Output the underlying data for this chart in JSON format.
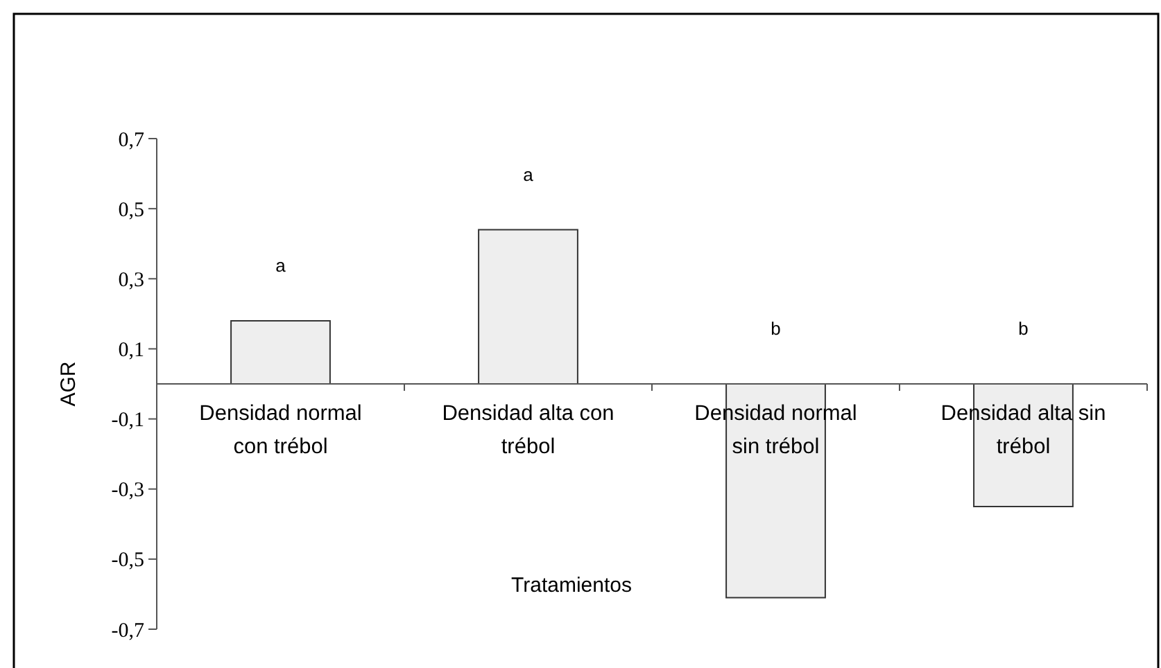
{
  "chart_data": {
    "type": "bar",
    "xlabel": "Tratamientos",
    "ylabel": "AGR",
    "categories": [
      "Densidad normal con trébol",
      "Densidad alta con trébol",
      "Densidad normal sin trébol",
      "Densidad alta sin trébol"
    ],
    "values": [
      0.18,
      0.44,
      -0.61,
      -0.35
    ],
    "color": "#eeeeee",
    "ylim": [
      -0.7,
      0.7
    ],
    "yticks": [
      {
        "value": -0.7,
        "label": "-0,7"
      },
      {
        "value": -0.5,
        "label": "-0,5"
      },
      {
        "value": -0.3,
        "label": "-0,3"
      },
      {
        "value": -0.1,
        "label": "-0,1"
      },
      {
        "value": 0.1,
        "label": "0,1"
      },
      {
        "value": 0.3,
        "label": "0,3"
      },
      {
        "value": 0.5,
        "label": "0,5"
      },
      {
        "value": 0.7,
        "label": "0,7"
      }
    ],
    "annotations": [
      "a",
      "a",
      "b",
      "b"
    ],
    "grid": false
  }
}
